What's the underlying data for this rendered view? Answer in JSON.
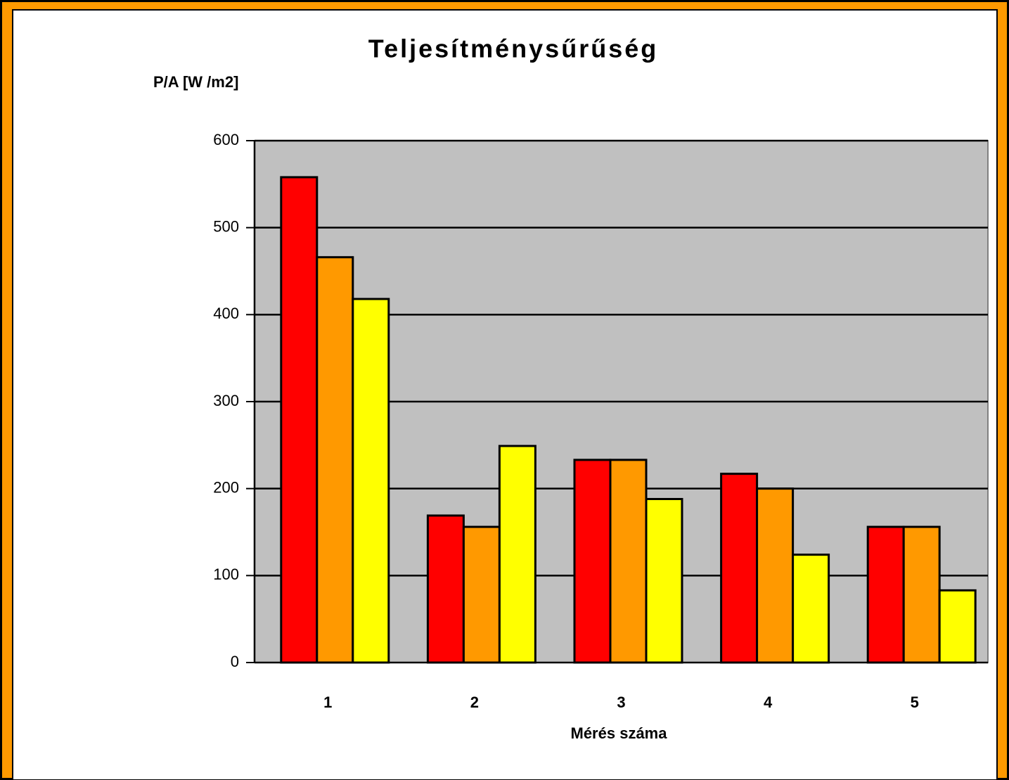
{
  "chart_data": {
    "type": "bar",
    "title": "Teljesítménysűrűség",
    "y_label": "P/A [W /m2]",
    "x_label": "Mérés száma",
    "categories": [
      "1",
      "2",
      "3",
      "4",
      "5"
    ],
    "series": [
      {
        "color": "#ff0000",
        "values": [
          558,
          169,
          233,
          217,
          156
        ]
      },
      {
        "color": "#ff9900",
        "values": [
          466,
          156,
          233,
          200,
          156
        ]
      },
      {
        "color": "#ffff00",
        "values": [
          418,
          249,
          188,
          124,
          83
        ]
      }
    ],
    "ylim": [
      0,
      600
    ],
    "yticks": [
      0,
      100,
      200,
      300,
      400,
      500,
      600
    ],
    "grid": true,
    "plot_background": "#c0c0c0"
  }
}
